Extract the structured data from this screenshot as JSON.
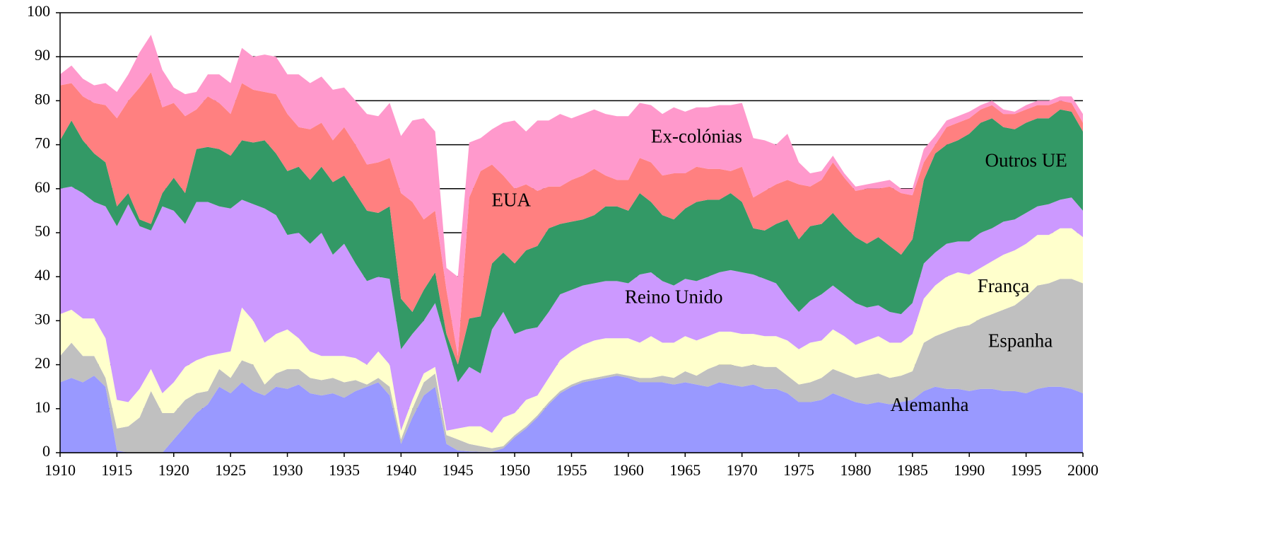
{
  "chart_data": {
    "type": "stacked-area",
    "x": [
      1910,
      1911,
      1912,
      1913,
      1914,
      1915,
      1916,
      1917,
      1918,
      1919,
      1920,
      1921,
      1922,
      1923,
      1924,
      1925,
      1926,
      1927,
      1928,
      1929,
      1930,
      1931,
      1932,
      1933,
      1934,
      1935,
      1936,
      1937,
      1938,
      1939,
      1940,
      1941,
      1942,
      1943,
      1944,
      1945,
      1946,
      1947,
      1948,
      1949,
      1950,
      1951,
      1952,
      1953,
      1954,
      1955,
      1956,
      1957,
      1958,
      1959,
      1960,
      1961,
      1962,
      1963,
      1964,
      1965,
      1966,
      1967,
      1968,
      1969,
      1970,
      1971,
      1972,
      1973,
      1974,
      1975,
      1976,
      1977,
      1978,
      1979,
      1980,
      1981,
      1982,
      1983,
      1984,
      1985,
      1986,
      1987,
      1988,
      1989,
      1990,
      1991,
      1992,
      1993,
      1994,
      1995,
      1996,
      1997,
      1998,
      1999,
      2000
    ],
    "xlim": [
      1910,
      2000
    ],
    "xticks": [
      1910,
      1915,
      1920,
      1925,
      1930,
      1935,
      1940,
      1945,
      1950,
      1955,
      1960,
      1965,
      1970,
      1975,
      1980,
      1985,
      1990,
      1995,
      2000
    ],
    "ylim": [
      0,
      100
    ],
    "yticks": [
      0,
      10,
      20,
      30,
      40,
      50,
      60,
      70,
      80,
      90,
      100
    ],
    "grid": true,
    "series": [
      {
        "name": "Alemanha",
        "color": "#9999ff",
        "values": [
          16,
          17,
          16,
          17.5,
          15,
          0.5,
          0,
          0,
          0,
          0,
          3,
          6,
          9,
          11,
          15,
          13.5,
          16,
          14,
          13,
          15,
          14.5,
          15.5,
          13.5,
          13,
          13.5,
          12.5,
          14,
          15,
          16,
          13,
          2,
          8,
          13,
          15,
          2,
          0.5,
          0.3,
          0.2,
          0.2,
          1,
          3.5,
          5.5,
          8,
          11,
          13.5,
          15,
          16,
          16.5,
          17,
          17.5,
          17,
          16,
          16,
          16,
          15.5,
          16,
          15.5,
          15,
          16,
          15.5,
          15,
          15.5,
          14.5,
          14.5,
          13.5,
          11.5,
          11.5,
          12,
          13.5,
          12.5,
          11.5,
          11,
          11.5,
          11,
          11.5,
          12,
          14,
          15,
          14.5,
          14.5,
          14,
          14.5,
          14.5,
          14,
          14,
          13.5,
          14.5,
          15,
          15,
          14.5,
          13.5
        ]
      },
      {
        "name": "Espanha",
        "color": "#c0c0c0",
        "values": [
          6,
          8,
          6,
          4.5,
          2,
          5,
          6,
          8,
          14,
          9,
          6,
          6,
          4.5,
          3,
          4,
          3.5,
          5,
          6,
          2.5,
          3,
          4.5,
          3.5,
          3.5,
          3.5,
          3.5,
          3.5,
          2.5,
          0.5,
          1,
          2,
          1,
          2,
          3,
          3,
          2,
          2.5,
          1.7,
          1.3,
          0.8,
          0.5,
          0.5,
          0.5,
          0.5,
          0.5,
          0.5,
          0.5,
          0.5,
          0.5,
          0.5,
          0.5,
          0.5,
          1,
          1,
          1.5,
          1.5,
          2.5,
          2,
          4,
          4,
          4.5,
          4.5,
          4.5,
          5,
          5,
          4,
          4,
          4.5,
          5,
          5.5,
          5.5,
          5.5,
          6.5,
          6.5,
          6,
          6,
          6.5,
          11,
          11.5,
          13,
          14,
          15,
          16,
          17,
          18.5,
          19.5,
          22,
          23.5,
          23.5,
          24.5,
          25,
          25
        ]
      },
      {
        "name": "França",
        "color": "#ffffcc",
        "values": [
          9.5,
          7.5,
          8.5,
          8.5,
          9,
          6.5,
          5.5,
          6.5,
          5,
          4.5,
          7,
          7.5,
          7.5,
          8,
          3.5,
          6,
          12,
          10,
          9.5,
          9,
          9,
          7,
          6,
          5.5,
          5,
          6,
          5,
          4.5,
          6,
          5,
          2,
          2,
          2,
          1.5,
          1,
          2.5,
          4,
          4.5,
          3.5,
          6.5,
          5,
          6,
          4.5,
          5.5,
          7,
          7.5,
          8,
          8.5,
          8.5,
          8,
          8.5,
          8,
          9.5,
          7.5,
          8,
          8,
          8,
          7.5,
          7.5,
          7.5,
          7.5,
          7,
          7,
          7,
          8,
          8,
          9,
          8.5,
          9,
          8.5,
          7.5,
          8,
          8.5,
          8,
          7.5,
          8.5,
          10,
          11.5,
          12.5,
          12.5,
          11.5,
          11.5,
          12,
          12.5,
          12.5,
          12,
          11.5,
          11,
          11.5,
          11.5,
          10.5
        ]
      },
      {
        "name": "Reino Unido",
        "color": "#cc99ff",
        "values": [
          28.5,
          28,
          28.5,
          26.5,
          30,
          39.5,
          45,
          37,
          31.5,
          42.5,
          39,
          32.5,
          36,
          35,
          33.5,
          32.5,
          24.5,
          26.5,
          30.5,
          27,
          21.5,
          24,
          24.5,
          28,
          23,
          25.5,
          21.5,
          19,
          17,
          19.5,
          18.5,
          15,
          12,
          14.5,
          20,
          10.5,
          13.5,
          12,
          23.5,
          24,
          18,
          16,
          15.5,
          15,
          15,
          14,
          13.5,
          13,
          13,
          13,
          12.5,
          15.5,
          14.5,
          14,
          13,
          13,
          13.5,
          13.5,
          13.5,
          14,
          14,
          13.5,
          13,
          12,
          9.5,
          8.5,
          9.5,
          10.5,
          10,
          9.5,
          9.5,
          7.5,
          7,
          7,
          6.5,
          7,
          8,
          7.5,
          7.5,
          7,
          7.5,
          8,
          7.5,
          7.5,
          7,
          7,
          6.5,
          7,
          6.5,
          7,
          6
        ]
      },
      {
        "name": "Outros UE",
        "color": "#339966",
        "values": [
          11,
          15,
          12,
          11,
          10,
          4.5,
          2.5,
          1.5,
          1.5,
          3,
          7.5,
          7,
          12,
          12.5,
          13,
          12,
          13.5,
          14,
          15.5,
          14,
          14.5,
          15,
          14.5,
          15,
          16.5,
          15.5,
          16,
          16,
          14.5,
          16.5,
          11.5,
          5,
          7,
          7,
          2,
          4,
          11,
          13,
          15,
          13.5,
          16,
          18,
          18.5,
          19,
          16,
          15.5,
          15,
          15.5,
          17,
          17,
          16.5,
          18.5,
          16,
          15,
          15,
          16,
          18,
          17.5,
          16.5,
          17.5,
          16,
          10.5,
          11,
          13.5,
          18,
          16.5,
          17,
          16,
          16.5,
          15.5,
          15,
          14.5,
          15.5,
          15,
          13.5,
          14.5,
          19,
          22.5,
          22.5,
          23,
          24.5,
          25,
          25,
          21.5,
          20.5,
          20.5,
          20,
          19.5,
          20.5,
          19.5,
          18
        ]
      },
      {
        "name": "EUA",
        "color": "#ff8080",
        "values": [
          12.5,
          8.5,
          10,
          11.5,
          13,
          20,
          21,
          30,
          34.5,
          19.5,
          17,
          17.5,
          9,
          11.5,
          10.5,
          9.5,
          13,
          12,
          11,
          13.5,
          13,
          9,
          11.5,
          10,
          9.5,
          11,
          11,
          10.5,
          11.5,
          11,
          24,
          25,
          16,
          14,
          10,
          2,
          27.5,
          33,
          22.5,
          17.5,
          17,
          15,
          12.5,
          9.5,
          8.5,
          9.5,
          10,
          10.5,
          7,
          6,
          7,
          8,
          9,
          9,
          10.5,
          8,
          8,
          7,
          7,
          5,
          8,
          7,
          9,
          9,
          9,
          12.5,
          9,
          10,
          11.5,
          11,
          10.5,
          12.5,
          11,
          13.5,
          14,
          10,
          4,
          2,
          4,
          4,
          3.5,
          3,
          3,
          3,
          3.5,
          3,
          3,
          3,
          2,
          2,
          2
        ]
      },
      {
        "name": "Ex-colónias",
        "color": "#ff99cc",
        "values": [
          2.5,
          4,
          4,
          4,
          5,
          6,
          6,
          8,
          8.5,
          8.5,
          3.5,
          5,
          4,
          5,
          6.5,
          7,
          8,
          7.5,
          8.5,
          8.5,
          9,
          12,
          10.5,
          10.5,
          11.5,
          9,
          10,
          11.5,
          10.5,
          12.5,
          13,
          18.5,
          23,
          18,
          5,
          18,
          12.5,
          7.5,
          8,
          12,
          15.5,
          12,
          16,
          15,
          16.5,
          14,
          14,
          13.5,
          14,
          14.5,
          14.5,
          12.5,
          13,
          14,
          15,
          14,
          13.5,
          14,
          14.5,
          15,
          14.5,
          13.5,
          11.5,
          9,
          10.5,
          5,
          3,
          2,
          1.5,
          1,
          1,
          1,
          1.5,
          1.5,
          1,
          1.5,
          3,
          2,
          1.5,
          1.5,
          1.5,
          1,
          1,
          1,
          0.5,
          1,
          1,
          1,
          1,
          1.5,
          2
        ]
      }
    ]
  }
}
